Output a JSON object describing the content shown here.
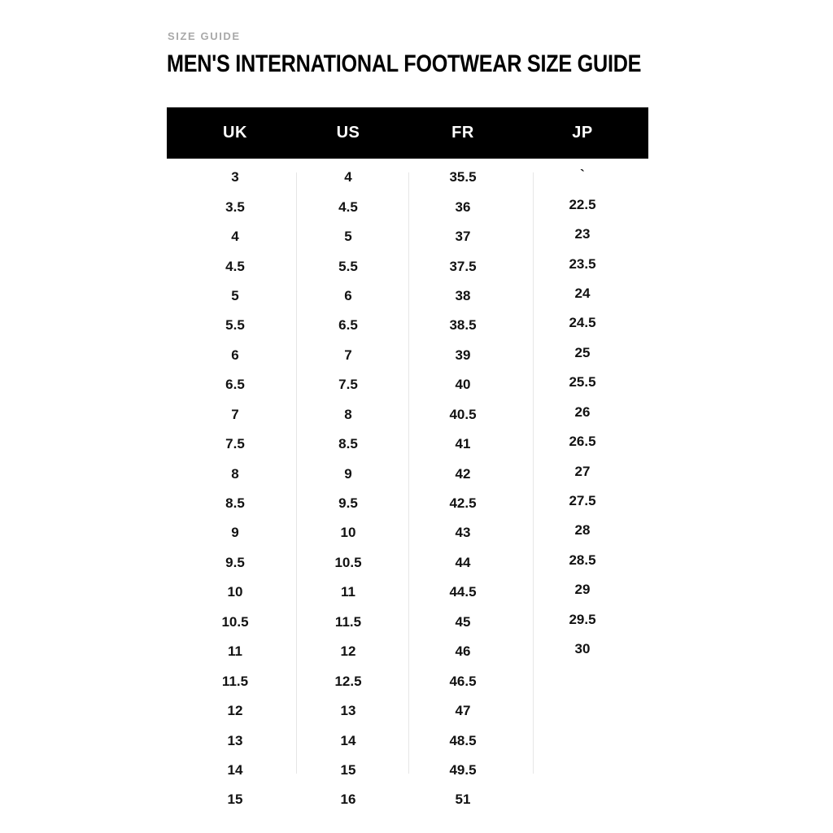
{
  "page": {
    "eyebrow": "SIZE GUIDE",
    "title": "MEN'S INTERNATIONAL FOOTWEAR SIZE GUIDE"
  },
  "colors": {
    "header_bg": "#000000",
    "header_text": "#ffffff",
    "eyebrow_text": "#a9a9a9",
    "body_text": "#121212",
    "divider": "#e6e6e6",
    "background": "#ffffff"
  },
  "table": {
    "columns": [
      "UK",
      "US",
      "FR",
      "JP"
    ],
    "rows": [
      [
        "3",
        "4",
        "35.5",
        "`"
      ],
      [
        "3.5",
        "4.5",
        "36",
        "22.5"
      ],
      [
        "4",
        "5",
        "37",
        "23"
      ],
      [
        "4.5",
        "5.5",
        "37.5",
        "23.5"
      ],
      [
        "5",
        "6",
        "38",
        "24"
      ],
      [
        "5.5",
        "6.5",
        "38.5",
        "24.5"
      ],
      [
        "6",
        "7",
        "39",
        "25"
      ],
      [
        "6.5",
        "7.5",
        "40",
        "25.5"
      ],
      [
        "7",
        "8",
        "40.5",
        "26"
      ],
      [
        "7.5",
        "8.5",
        "41",
        "26.5"
      ],
      [
        "8",
        "9",
        "42",
        "27"
      ],
      [
        "8.5",
        "9.5",
        "42.5",
        "27.5"
      ],
      [
        "9",
        "10",
        "43",
        "28"
      ],
      [
        "9.5",
        "10.5",
        "44",
        "28.5"
      ],
      [
        "10",
        "11",
        "44.5",
        "29"
      ],
      [
        "10.5",
        "11.5",
        "45",
        "29.5"
      ],
      [
        "11",
        "12",
        "46",
        "30"
      ],
      [
        "11.5",
        "12.5",
        "46.5",
        ""
      ],
      [
        "12",
        "13",
        "47",
        ""
      ],
      [
        "13",
        "14",
        "48.5",
        ""
      ],
      [
        "14",
        "15",
        "49.5",
        ""
      ],
      [
        "15",
        "16",
        "51",
        ""
      ]
    ]
  }
}
